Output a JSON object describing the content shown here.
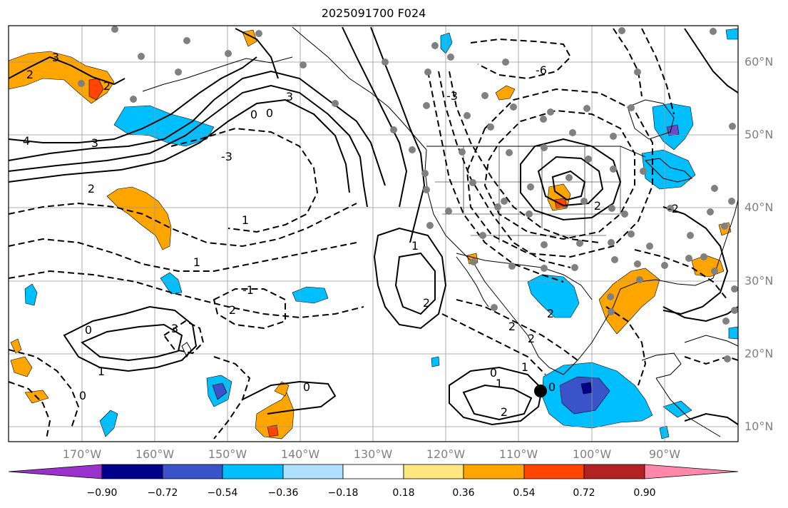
{
  "title": "2025091700 F024",
  "lat_labels": [
    "60°N",
    "50°N",
    "40°N",
    "30°N",
    "20°N",
    "10°N"
  ],
  "lon_labels": [
    "170°W",
    "160°W",
    "150°W",
    "140°W",
    "130°W",
    "120°W",
    "110°W",
    "100°W",
    "90°W"
  ],
  "contour_labels": [
    "3",
    "2",
    "2",
    "4",
    "3",
    "0",
    "0",
    "3",
    "-3",
    "2",
    "1",
    "1",
    "2",
    "0",
    "1",
    "0",
    "0",
    "-1",
    "1",
    "2",
    "2",
    "2",
    "1",
    "0",
    "1",
    "0",
    "2",
    "3",
    "2",
    "-6",
    "-3",
    "2",
    "-2"
  ],
  "colorbar": {
    "tick_labels": [
      "−0.90",
      "−0.72",
      "−0.54",
      "−0.36",
      "−0.18",
      "0.18",
      "0.36",
      "0.54",
      "0.72",
      "0.90"
    ],
    "colors": [
      "#9932cc",
      "#00008b",
      "#3a53c9",
      "#00bfff",
      "#b0e0ff",
      "#ffffff",
      "#ffe680",
      "#ffa500",
      "#ff4500",
      "#b22222",
      "#ff88aa"
    ]
  },
  "shading_colors": {
    "orange": "#ffa500",
    "red_orange": "#ff4500",
    "light_blue": "#00bfff",
    "mid_blue": "#3a53c9",
    "dark_blue": "#00008b",
    "purple": "#6a4cc8"
  },
  "station_color": "#808080",
  "marker_color": "#000000"
}
